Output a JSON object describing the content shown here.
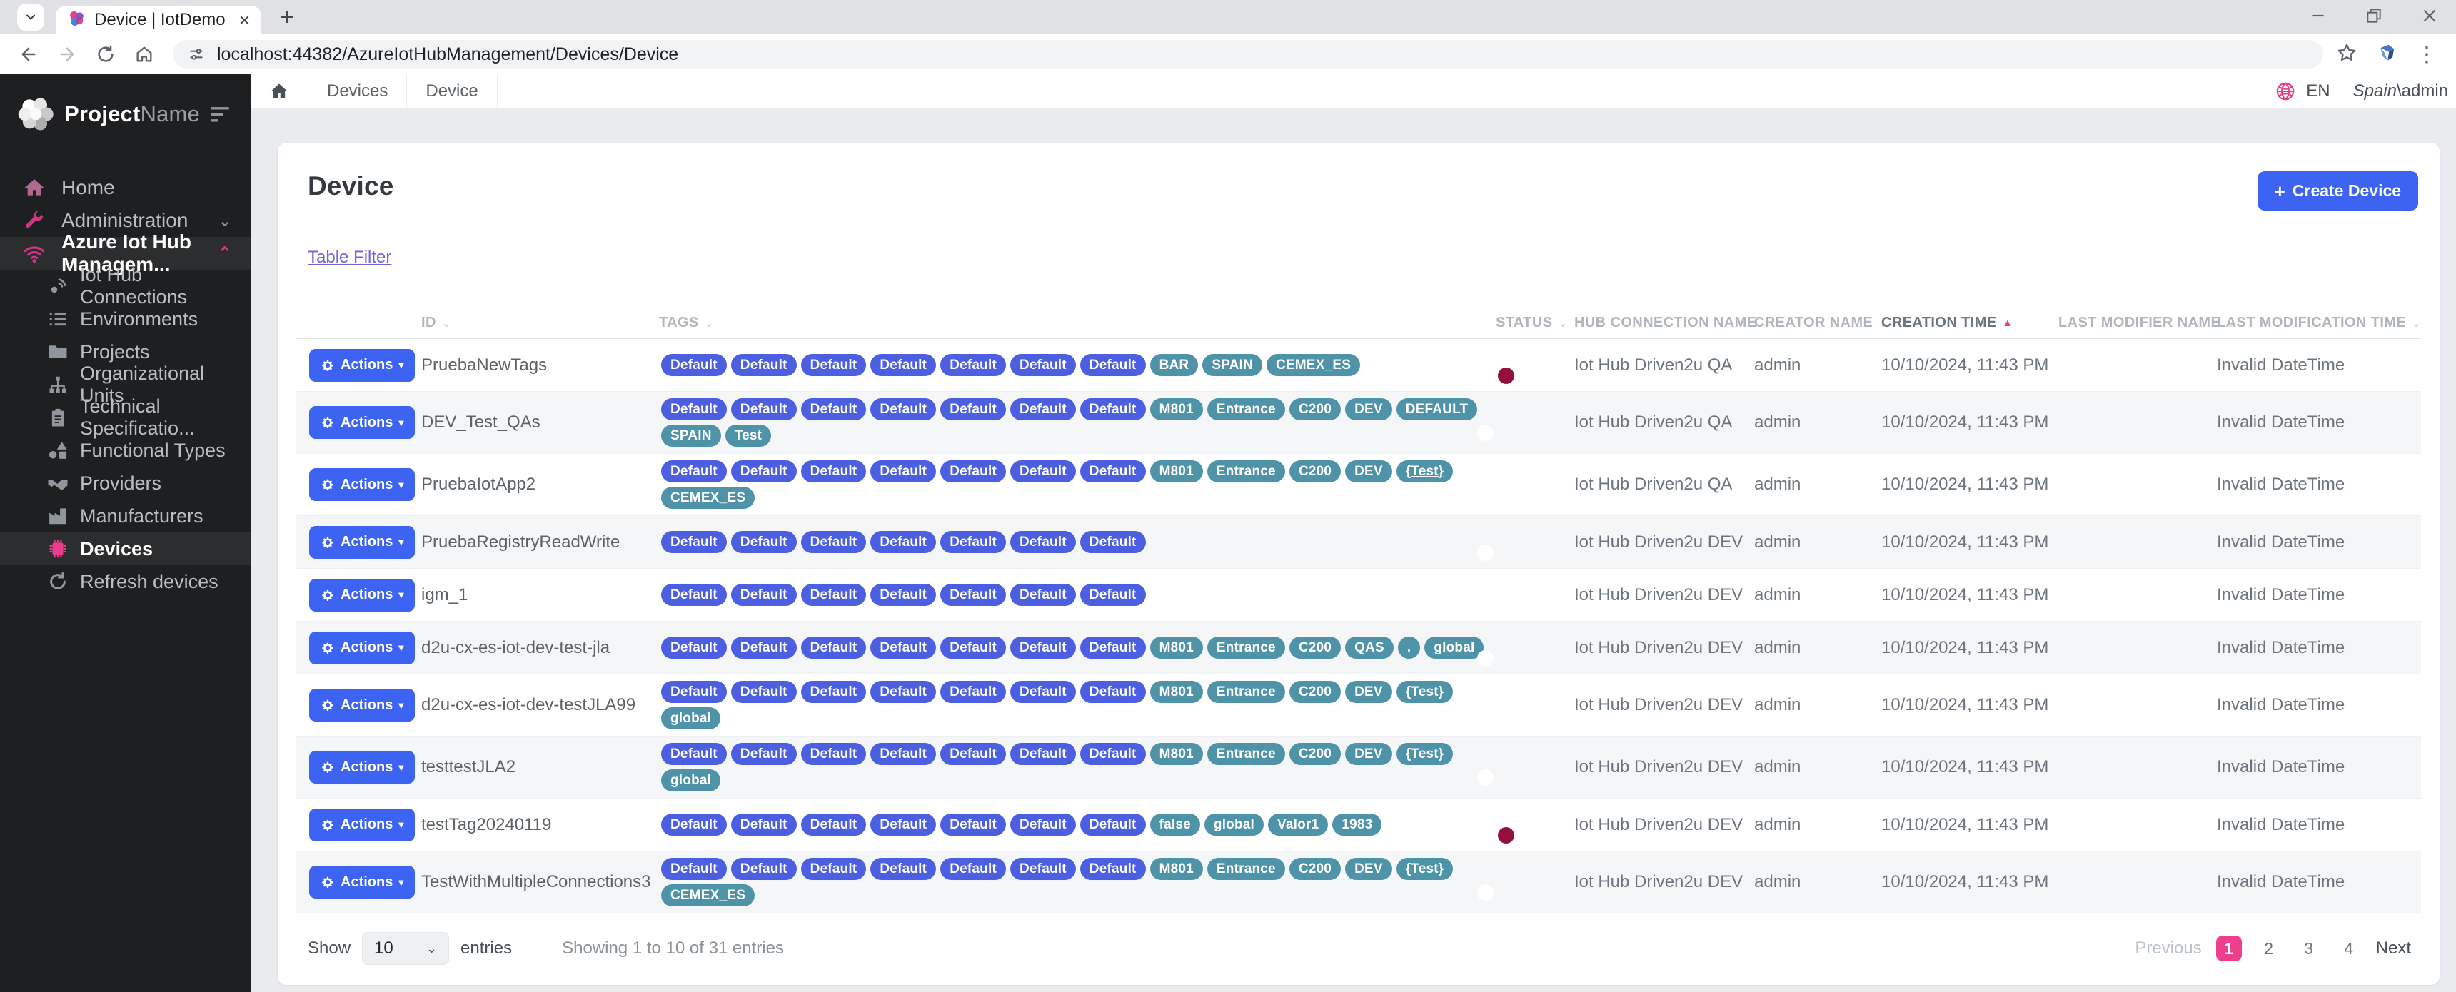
{
  "browser": {
    "tab_title": "Device | IotDemo",
    "url": "localhost:44382/AzureIotHubManagement/Devices/Device"
  },
  "topbar": {
    "breadcrumbs": [
      "Devices",
      "Device"
    ],
    "language": "EN",
    "user_domain": "Spain",
    "user_rest": "\\admin"
  },
  "sidebar": {
    "logo_bold": "Project",
    "logo_light": "Name",
    "items": [
      {
        "label": "Home",
        "icon": "home-icon",
        "level": 0,
        "icon_color": "#b06a8f",
        "chevron": "",
        "active": false
      },
      {
        "label": "Administration",
        "icon": "wrench-icon",
        "level": 0,
        "icon_color": "#d63384",
        "chevron": "down",
        "active": false
      },
      {
        "label": "Azure Iot Hub Managem...",
        "icon": "wifi-icon",
        "level": 0,
        "icon_color": "#d63384",
        "chevron": "up",
        "active": true
      },
      {
        "label": "Iot Hub Connections",
        "icon": "satellite-icon",
        "level": 1,
        "icon_color": "#8f969c",
        "chevron": "",
        "active": false
      },
      {
        "label": "Environments",
        "icon": "list-icon",
        "level": 1,
        "icon_color": "#8f969c",
        "chevron": "",
        "active": false
      },
      {
        "label": "Projects",
        "icon": "folder-icon",
        "level": 1,
        "icon_color": "#8f969c",
        "chevron": "",
        "active": false
      },
      {
        "label": "Organizational Units",
        "icon": "org-chart-icon",
        "level": 1,
        "icon_color": "#8f969c",
        "chevron": "",
        "active": false
      },
      {
        "label": "Technical Specificatio...",
        "icon": "clipboard-icon",
        "level": 1,
        "icon_color": "#8f969c",
        "chevron": "",
        "active": false
      },
      {
        "label": "Functional Types",
        "icon": "shapes-icon",
        "level": 1,
        "icon_color": "#8f969c",
        "chevron": "",
        "active": false
      },
      {
        "label": "Providers",
        "icon": "handshake-icon",
        "level": 1,
        "icon_color": "#8f969c",
        "chevron": "",
        "active": false
      },
      {
        "label": "Manufacturers",
        "icon": "factory-icon",
        "level": 1,
        "icon_color": "#8f969c",
        "chevron": "",
        "active": false
      },
      {
        "label": "Devices",
        "icon": "chip-icon",
        "level": 1,
        "icon_color": "#e83e8c",
        "chevron": "",
        "active": true
      },
      {
        "label": "Refresh devices",
        "icon": "refresh-icon",
        "level": 1,
        "icon_color": "#8f969c",
        "chevron": "",
        "active": false
      }
    ]
  },
  "page": {
    "title": "Device",
    "create_button": "Create Device",
    "filter_link": "Table Filter"
  },
  "table": {
    "actions_label": "Actions",
    "columns": [
      {
        "label": "ID",
        "sorted": false
      },
      {
        "label": "TAGS",
        "sorted": false
      },
      {
        "label": "STATUS",
        "sorted": false
      },
      {
        "label": "HUB CONNECTION NAME",
        "sorted": false
      },
      {
        "label": "CREATOR NAME",
        "sorted": false
      },
      {
        "label": "CREATION TIME",
        "sorted": true
      },
      {
        "label": "LAST MODIFIER NAME",
        "sorted": false
      },
      {
        "label": "LAST MODIFICATION TIME",
        "sorted": false
      }
    ],
    "rows": [
      {
        "id": "PruebaNewTags",
        "tags": [
          "Default",
          "Default",
          "Default",
          "Default",
          "Default",
          "Default",
          "Default",
          "BAR",
          "SPAIN",
          "CEMEX_ES"
        ],
        "status": "off",
        "hub": "Iot Hub Driven2u QA",
        "creator": "admin",
        "created": "10/10/2024, 11:43 PM",
        "modifier": "",
        "modified": "Invalid DateTime"
      },
      {
        "id": "DEV_Test_QAs",
        "tags": [
          "Default",
          "Default",
          "Default",
          "Default",
          "Default",
          "Default",
          "Default",
          "M801",
          "Entrance",
          "C200",
          "DEV",
          "DEFAULT",
          "SPAIN",
          "Test"
        ],
        "status": "on",
        "hub": "Iot Hub Driven2u QA",
        "creator": "admin",
        "created": "10/10/2024, 11:43 PM",
        "modifier": "",
        "modified": "Invalid DateTime"
      },
      {
        "id": "PruebaIotApp2",
        "tags": [
          "Default",
          "Default",
          "Default",
          "Default",
          "Default",
          "Default",
          "Default",
          "M801",
          "Entrance",
          "C200",
          "DEV",
          "{Test}",
          "CEMEX_ES"
        ],
        "status": "on",
        "hub": "Iot Hub Driven2u QA",
        "creator": "admin",
        "created": "10/10/2024, 11:43 PM",
        "modifier": "",
        "modified": "Invalid DateTime"
      },
      {
        "id": "PruebaRegistryReadWrite",
        "tags": [
          "Default",
          "Default",
          "Default",
          "Default",
          "Default",
          "Default",
          "Default"
        ],
        "status": "on",
        "hub": "Iot Hub Driven2u DEV",
        "creator": "admin",
        "created": "10/10/2024, 11:43 PM",
        "modifier": "",
        "modified": "Invalid DateTime"
      },
      {
        "id": "igm_1",
        "tags": [
          "Default",
          "Default",
          "Default",
          "Default",
          "Default",
          "Default",
          "Default"
        ],
        "status": "on",
        "hub": "Iot Hub Driven2u DEV",
        "creator": "admin",
        "created": "10/10/2024, 11:43 PM",
        "modifier": "",
        "modified": "Invalid DateTime"
      },
      {
        "id": "d2u-cx-es-iot-dev-test-jla",
        "tags": [
          "Default",
          "Default",
          "Default",
          "Default",
          "Default",
          "Default",
          "Default",
          "M801",
          "Entrance",
          "C200",
          "QAS",
          ".",
          "global"
        ],
        "status": "on",
        "hub": "Iot Hub Driven2u DEV",
        "creator": "admin",
        "created": "10/10/2024, 11:43 PM",
        "modifier": "",
        "modified": "Invalid DateTime"
      },
      {
        "id": "d2u-cx-es-iot-dev-testJLA99",
        "tags": [
          "Default",
          "Default",
          "Default",
          "Default",
          "Default",
          "Default",
          "Default",
          "M801",
          "Entrance",
          "C200",
          "DEV",
          "{Test}",
          "global"
        ],
        "status": "on",
        "hub": "Iot Hub Driven2u DEV",
        "creator": "admin",
        "created": "10/10/2024, 11:43 PM",
        "modifier": "",
        "modified": "Invalid DateTime"
      },
      {
        "id": "testtestJLA2",
        "tags": [
          "Default",
          "Default",
          "Default",
          "Default",
          "Default",
          "Default",
          "Default",
          "M801",
          "Entrance",
          "C200",
          "DEV",
          "{Test}",
          "global"
        ],
        "status": "on",
        "hub": "Iot Hub Driven2u DEV",
        "creator": "admin",
        "created": "10/10/2024, 11:43 PM",
        "modifier": "",
        "modified": "Invalid DateTime"
      },
      {
        "id": "testTag20240119",
        "tags": [
          "Default",
          "Default",
          "Default",
          "Default",
          "Default",
          "Default",
          "Default",
          "false",
          "global",
          "Valor1",
          "1983"
        ],
        "status": "off",
        "hub": "Iot Hub Driven2u DEV",
        "creator": "admin",
        "created": "10/10/2024, 11:43 PM",
        "modifier": "",
        "modified": "Invalid DateTime"
      },
      {
        "id": "TestWithMultipleConnections3",
        "tags": [
          "Default",
          "Default",
          "Default",
          "Default",
          "Default",
          "Default",
          "Default",
          "M801",
          "Entrance",
          "C200",
          "DEV",
          "{Test}",
          "CEMEX_ES"
        ],
        "status": "on",
        "hub": "Iot Hub Driven2u DEV",
        "creator": "admin",
        "created": "10/10/2024, 11:43 PM",
        "modifier": "",
        "modified": "Invalid DateTime"
      }
    ]
  },
  "footer": {
    "show_label": "Show",
    "page_size": "10",
    "entries_label": "entries",
    "showing": "Showing 1 to 10 of 31 entries",
    "previous": "Previous",
    "pages": [
      "1",
      "2",
      "3",
      "4"
    ],
    "active_page": "1",
    "next": "Next"
  },
  "colors": {
    "accent_blue": "#3d63f2",
    "badge_blue": "#4c5fe0",
    "badge_teal": "#4f93a9",
    "pink": "#e83e8c",
    "toggle_on": "#5cbb6a",
    "toggle_off": "#c0134e"
  }
}
